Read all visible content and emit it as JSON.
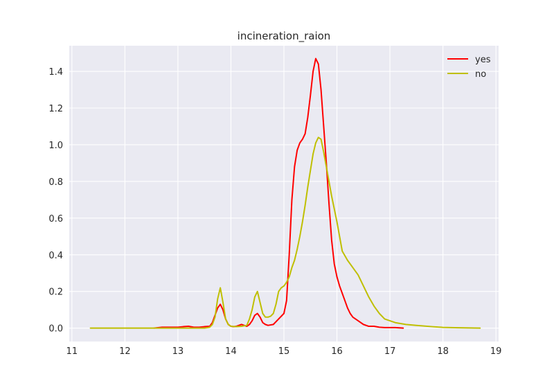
{
  "chart_data": {
    "type": "line",
    "title": "incineration_raion",
    "xlabel": "",
    "ylabel": "",
    "xlim": [
      10.95,
      19.05
    ],
    "ylim": [
      -0.073,
      1.54
    ],
    "x_ticks": [
      11,
      12,
      13,
      14,
      15,
      16,
      17,
      18,
      19
    ],
    "y_ticks": [
      0.0,
      0.2,
      0.4,
      0.6,
      0.8,
      1.0,
      1.2,
      1.4
    ],
    "grid": true,
    "legend_position": "upper right",
    "background_color": "#eaeaf2",
    "grid_color": "#ffffff",
    "series": [
      {
        "name": "yes",
        "color": "#ff0000",
        "x": [
          12.55,
          12.7,
          12.8,
          12.9,
          13.0,
          13.1,
          13.2,
          13.3,
          13.4,
          13.5,
          13.6,
          13.65,
          13.7,
          13.75,
          13.8,
          13.85,
          13.9,
          13.95,
          14.0,
          14.05,
          14.1,
          14.15,
          14.2,
          14.25,
          14.3,
          14.35,
          14.4,
          14.45,
          14.5,
          14.55,
          14.6,
          14.65,
          14.7,
          14.8,
          14.9,
          15.0,
          15.05,
          15.1,
          15.15,
          15.2,
          15.25,
          15.3,
          15.35,
          15.4,
          15.45,
          15.5,
          15.55,
          15.6,
          15.65,
          15.7,
          15.75,
          15.8,
          15.85,
          15.9,
          15.95,
          16.0,
          16.05,
          16.1,
          16.15,
          16.2,
          16.25,
          16.3,
          16.4,
          16.5,
          16.6,
          16.7,
          16.8,
          16.9,
          17.0,
          17.1,
          17.25
        ],
        "values": [
          0.0,
          0.005,
          0.005,
          0.005,
          0.005,
          0.008,
          0.01,
          0.005,
          0.005,
          0.008,
          0.01,
          0.03,
          0.07,
          0.11,
          0.13,
          0.1,
          0.05,
          0.02,
          0.01,
          0.008,
          0.01,
          0.015,
          0.02,
          0.015,
          0.01,
          0.02,
          0.04,
          0.07,
          0.08,
          0.06,
          0.03,
          0.02,
          0.015,
          0.02,
          0.05,
          0.08,
          0.15,
          0.4,
          0.7,
          0.88,
          0.97,
          1.01,
          1.03,
          1.06,
          1.15,
          1.27,
          1.4,
          1.47,
          1.44,
          1.3,
          1.1,
          0.9,
          0.68,
          0.48,
          0.35,
          0.28,
          0.23,
          0.19,
          0.15,
          0.11,
          0.08,
          0.06,
          0.04,
          0.02,
          0.01,
          0.01,
          0.005,
          0.003,
          0.003,
          0.003,
          0.0
        ]
      },
      {
        "name": "no",
        "color": "#bfbf00",
        "x": [
          11.35,
          12.0,
          12.5,
          13.0,
          13.3,
          13.5,
          13.6,
          13.65,
          13.7,
          13.75,
          13.8,
          13.85,
          13.9,
          13.95,
          14.0,
          14.1,
          14.2,
          14.3,
          14.35,
          14.4,
          14.45,
          14.5,
          14.55,
          14.6,
          14.65,
          14.7,
          14.75,
          14.8,
          14.85,
          14.9,
          14.95,
          15.0,
          15.05,
          15.1,
          15.15,
          15.2,
          15.25,
          15.3,
          15.35,
          15.4,
          15.45,
          15.5,
          15.55,
          15.6,
          15.65,
          15.7,
          15.75,
          15.8,
          15.85,
          15.9,
          15.95,
          16.0,
          16.05,
          16.1,
          16.2,
          16.3,
          16.4,
          16.5,
          16.6,
          16.7,
          16.8,
          16.9,
          17.0,
          17.1,
          17.3,
          17.5,
          17.8,
          18.0,
          18.3,
          18.7
        ],
        "values": [
          0.0,
          0.0,
          0.0,
          0.0,
          0.0,
          0.0,
          0.005,
          0.02,
          0.06,
          0.16,
          0.22,
          0.14,
          0.05,
          0.02,
          0.01,
          0.008,
          0.01,
          0.015,
          0.05,
          0.1,
          0.17,
          0.2,
          0.14,
          0.08,
          0.06,
          0.06,
          0.065,
          0.08,
          0.13,
          0.2,
          0.22,
          0.23,
          0.25,
          0.28,
          0.33,
          0.37,
          0.43,
          0.5,
          0.58,
          0.67,
          0.77,
          0.86,
          0.95,
          1.01,
          1.04,
          1.03,
          0.96,
          0.88,
          0.8,
          0.72,
          0.65,
          0.58,
          0.5,
          0.42,
          0.37,
          0.33,
          0.29,
          0.23,
          0.17,
          0.12,
          0.08,
          0.05,
          0.04,
          0.03,
          0.02,
          0.015,
          0.008,
          0.004,
          0.002,
          0.0
        ]
      }
    ]
  }
}
